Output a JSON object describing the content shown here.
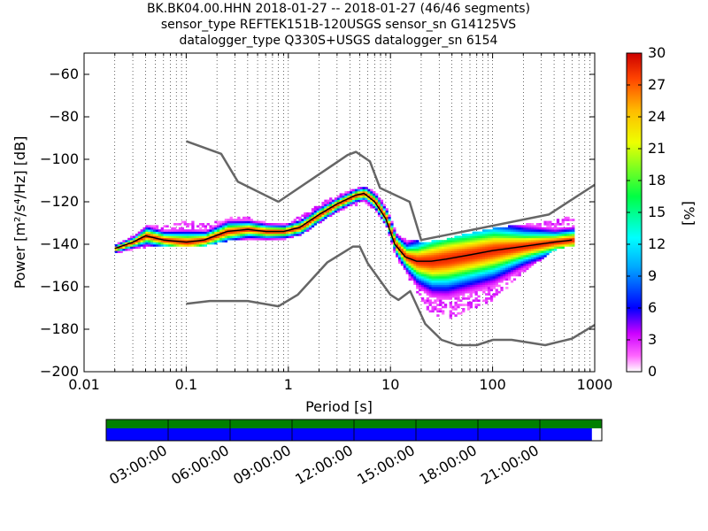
{
  "chart_data": {
    "type": "heatmap",
    "title_lines": [
      "BK.BK04.00.HHN   2018-01-27 -- 2018-01-27  (46/46 segments)",
      "sensor_type REFTEK151B-120USGS sensor_sn G14125VS",
      "datalogger_type Q330S+USGS datalogger_sn 6154"
    ],
    "xlabel": "Period [s]",
    "ylabel": "Power [m²/s⁴/Hz] [dB]",
    "x_scale": "log",
    "xlim": [
      0.01,
      1000
    ],
    "ylim": [
      -200,
      -50
    ],
    "xticks": [
      0.01,
      0.1,
      1,
      10,
      100,
      1000
    ],
    "xtick_labels": [
      "0.01",
      "0.1",
      "1",
      "10",
      "100",
      "1000"
    ],
    "yticks": [
      -200,
      -180,
      -160,
      -140,
      -120,
      -100,
      -80,
      -60
    ],
    "ytick_labels": [
      "−200",
      "−180",
      "−160",
      "−140",
      "−120",
      "−100",
      "−80",
      "−60"
    ],
    "grid": "dotted vertical lines",
    "colorbar": {
      "label": "[%]",
      "range": [
        0,
        30
      ],
      "ticks": [
        "0",
        "3",
        "6",
        "9",
        "12",
        "15",
        "18",
        "21",
        "24",
        "27",
        "30"
      ]
    },
    "noise_model_high": {
      "name": "NHNM",
      "color": "#666666",
      "x": [
        0.1,
        0.22,
        0.32,
        0.8,
        3.8,
        4.6,
        6.3,
        7.9,
        15.4,
        20,
        354.8,
        1000
      ],
      "y": [
        -91.5,
        -97.4,
        -110.5,
        -120,
        -98,
        -96.5,
        -101,
        -113.5,
        -120,
        -138,
        -126,
        -112
      ]
    },
    "noise_model_low": {
      "name": "NLNM",
      "color": "#666666",
      "x": [
        0.1,
        0.17,
        0.4,
        0.8,
        1.24,
        2.4,
        4.3,
        5,
        6,
        10,
        12,
        15.6,
        21.9,
        31.6,
        45,
        70,
        101,
        154,
        328,
        600,
        1000
      ],
      "y": [
        -168,
        -166.7,
        -166.7,
        -169.2,
        -163.7,
        -148.6,
        -141.1,
        -141.1,
        -149,
        -163.8,
        -166.2,
        -162.1,
        -177.5,
        -185,
        -187.5,
        -187.5,
        -185,
        -185,
        -187.5,
        -184.4,
        -178
      ]
    },
    "mode_line": {
      "name": "mode",
      "color": "#000000",
      "x": [
        0.02,
        0.03,
        0.04,
        0.06,
        0.1,
        0.15,
        0.25,
        0.4,
        0.6,
        0.9,
        1.3,
        2,
        3,
        4.5,
        5.5,
        7,
        9,
        11,
        14,
        18,
        25,
        35,
        60,
        100,
        200,
        400,
        600
      ],
      "y": [
        -142,
        -139,
        -136,
        -138,
        -139,
        -138,
        -134,
        -133,
        -134,
        -134,
        -132,
        -126,
        -121,
        -117,
        -116,
        -120,
        -128,
        -140,
        -146,
        -148,
        -148,
        -147,
        -145,
        -143,
        -141,
        -139,
        -138
      ]
    },
    "psd_cloud": {
      "x": [
        0.02,
        0.03,
        0.04,
        0.06,
        0.1,
        0.15,
        0.25,
        0.4,
        0.6,
        0.9,
        1.3,
        2,
        3,
        4.5,
        5.5,
        7,
        9,
        11,
        14,
        18,
        25,
        35,
        60,
        100,
        200,
        400,
        600
      ],
      "y_min": [
        -144,
        -142,
        -141,
        -141,
        -141,
        -140,
        -138,
        -137,
        -138,
        -137,
        -135,
        -129,
        -124,
        -121,
        -120,
        -124,
        -132,
        -146,
        -153,
        -164,
        -173,
        -175,
        -170,
        -166,
        -152,
        -142,
        -140
      ],
      "y_max": [
        -140,
        -136,
        -131,
        -132,
        -129,
        -131,
        -127,
        -128,
        -130,
        -130,
        -127,
        -121,
        -117,
        -114,
        -113,
        -116,
        -123,
        -135,
        -138,
        -139,
        -139,
        -138,
        -135,
        -133,
        -131,
        -129,
        -127
      ]
    },
    "timeline": {
      "tick_labels": [
        "03:00:00",
        "06:00:00",
        "09:00:00",
        "12:00:00",
        "15:00:00",
        "18:00:00",
        "21:00:00"
      ],
      "data_coverage_color": "#008000",
      "psd_coverage_color": "#0000ff",
      "psd_coverage_fraction": 0.98
    }
  }
}
